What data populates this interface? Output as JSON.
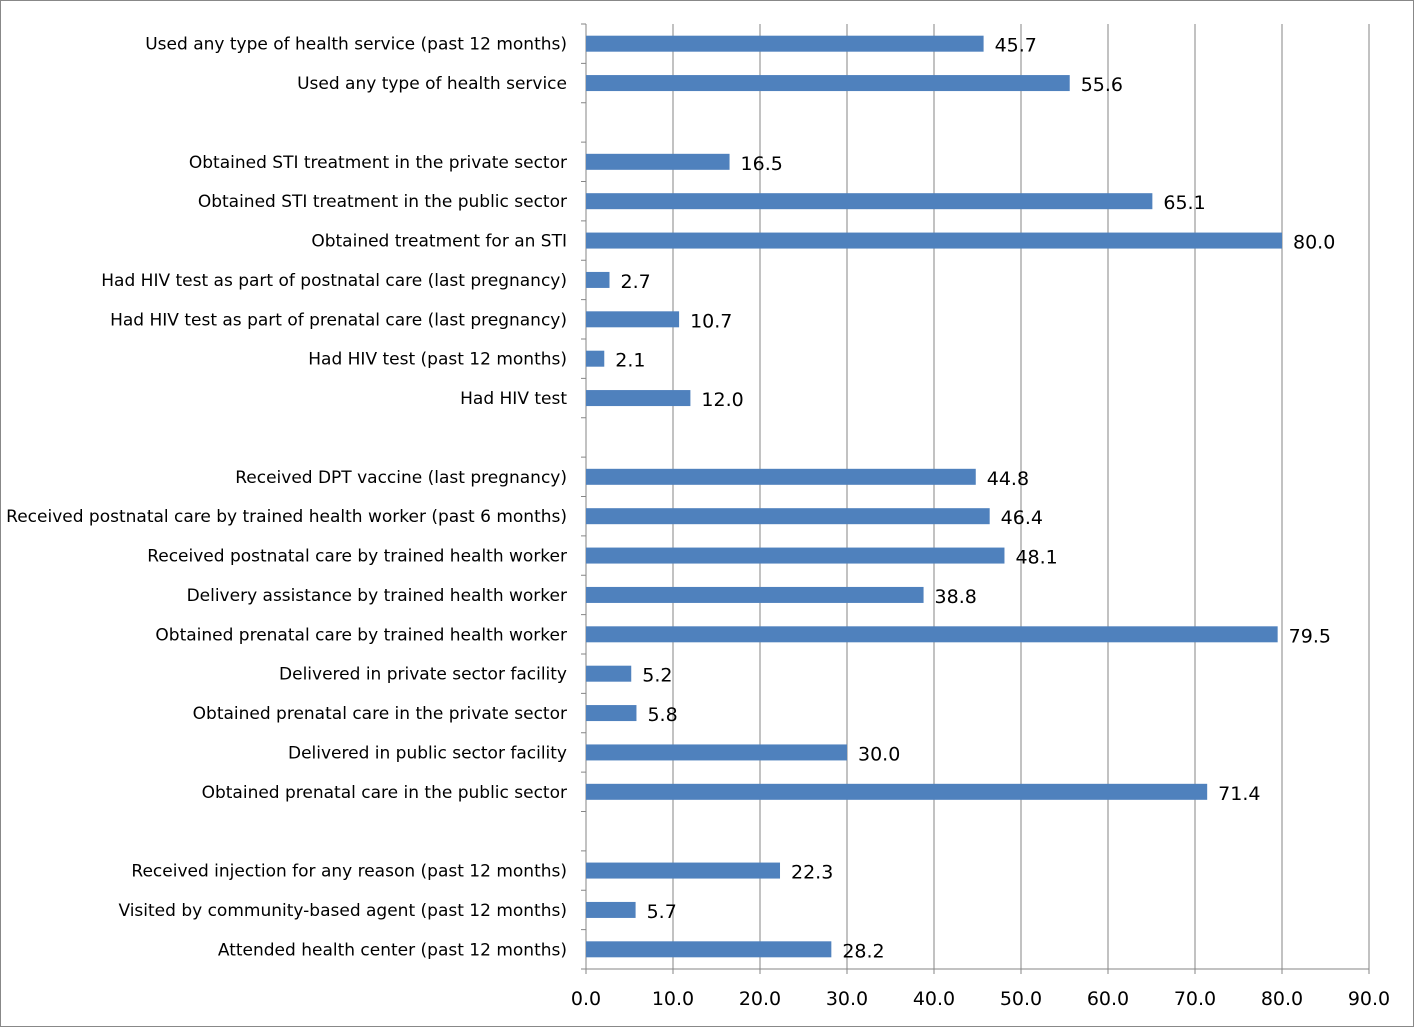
{
  "chart_data": {
    "type": "bar",
    "orientation": "horizontal",
    "categories": [
      "Used any type of health service (past 12 months)",
      "Used any type of health service",
      "",
      "Obtained STI treatment in the private sector",
      "Obtained STI treatment in the public sector",
      "Obtained treatment for an STI",
      "Had HIV test as part of postnatal care (last pregnancy)",
      "Had HIV test as part of prenatal care (last pregnancy)",
      "Had HIV test (past 12 months)",
      "Had HIV test",
      "",
      "Received DPT vaccine (last pregnancy)",
      "Received postnatal care by trained health worker (past 6 months)",
      "Received postnatal care by trained health worker",
      "Delivery assistance by trained health worker",
      "Obtained prenatal care by trained health worker",
      "Delivered in private sector facility",
      "Obtained prenatal care in the private sector",
      "Delivered in public sector facility",
      "Obtained prenatal care in the public sector",
      "",
      "Received injection for any reason (past 12 months)",
      "Visited by community-based agent (past 12 months)",
      "Attended health center (past 12 months)"
    ],
    "values": [
      45.7,
      55.6,
      null,
      16.5,
      65.1,
      80.0,
      2.7,
      10.7,
      2.1,
      12.0,
      null,
      44.8,
      46.4,
      48.1,
      38.8,
      79.5,
      5.2,
      5.8,
      30.0,
      71.4,
      null,
      22.3,
      5.7,
      28.2
    ],
    "value_labels": [
      "45.7",
      "55.6",
      "",
      "16.5",
      "65.1",
      "80.0",
      "2.7",
      "10.7",
      "2.1",
      "12.0",
      "",
      "44.8",
      "46.4",
      "48.1",
      "38.8",
      "79.5",
      "5.2",
      "5.8",
      "30.0",
      "71.4",
      "",
      "22.3",
      "5.7",
      "28.2"
    ],
    "xlim": [
      0,
      90
    ],
    "x_ticks": [
      "0.0",
      "10.0",
      "20.0",
      "30.0",
      "40.0",
      "50.0",
      "60.0",
      "70.0",
      "80.0",
      "90.0"
    ],
    "title": "",
    "xlabel": "",
    "ylabel": "",
    "grid": "vertical",
    "legend": "none",
    "bar_color": "#4F81BD",
    "grid_color": "#868686"
  }
}
